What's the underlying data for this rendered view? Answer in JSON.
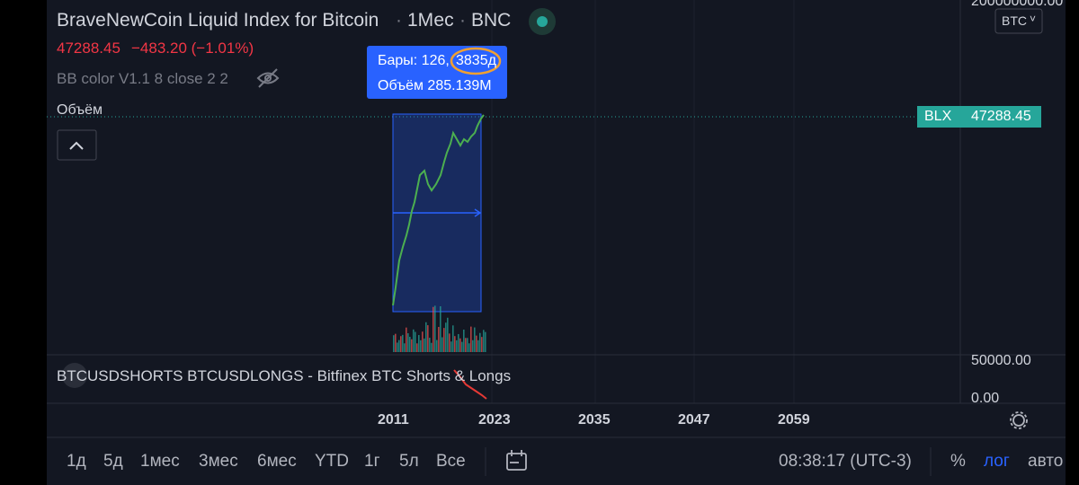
{
  "header": {
    "title": "BraveNewCoin Liquid Index for Bitcoin",
    "interval": "1Мес",
    "exchange": "BNC"
  },
  "price": {
    "last": "47288.45",
    "change": "−483.20 (−1.01%)"
  },
  "indicators": {
    "bb": "BB color V1.1 8 close 2 2",
    "volume": "Объём"
  },
  "tooltip": {
    "bars": "Бары: 126,",
    "days": "3835д",
    "volume": "Объём 285.139M"
  },
  "price_axis": {
    "top": "200000000.00",
    "currency": "BTC",
    "symbol": "BLX",
    "last": "47288.45"
  },
  "lower_pane": {
    "title": "BTCUSDSHORTS BTCUSDLONGS - Bitfinex BTC Shorts & Longs",
    "top": "50000.00",
    "bottom": "0.00"
  },
  "time_axis": [
    "2011",
    "2023",
    "2035",
    "2047",
    "2059"
  ],
  "toolbar": {
    "ranges": [
      "1д",
      "5д",
      "1мес",
      "3мес",
      "6мес",
      "YTD",
      "1г",
      "5л",
      "Все"
    ],
    "clock": "08:38:17 (UTC-3)",
    "percent": "%",
    "log": "лог",
    "auto": "авто"
  }
}
